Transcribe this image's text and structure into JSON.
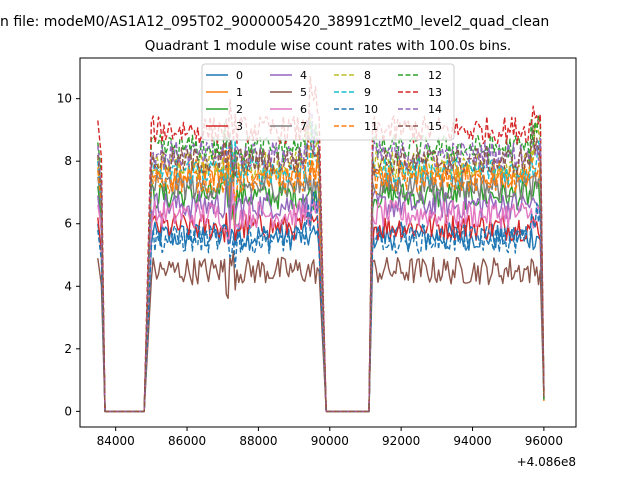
{
  "figure": {
    "suptitle": "n file: modeM0/AS1A12_095T02_9000005420_38991cztM0_level2_quad_clean",
    "offset_label": "+4.086e8"
  },
  "chart_data": {
    "type": "line",
    "title": "Quadrant 1 module wise count rates with 100.0s bins.",
    "xlabel": "",
    "ylabel": "",
    "xlim": [
      83000,
      96900
    ],
    "ylim": [
      -0.5,
      11.3
    ],
    "x_offset": 408600000,
    "xticks": [
      84000,
      86000,
      88000,
      90000,
      92000,
      94000,
      96000
    ],
    "xtick_labels": [
      "84000",
      "86000",
      "88000",
      "90000",
      "92000",
      "94000",
      "96000"
    ],
    "yticks": [
      0,
      2,
      4,
      6,
      8,
      10
    ],
    "ytick_labels": [
      "0",
      "2",
      "4",
      "6",
      "8",
      "10"
    ],
    "grid": false,
    "legend": {
      "position": "top-center",
      "columns": 4
    },
    "segments": [
      {
        "x_start": 83500,
        "x_end": 83700,
        "type": "drop",
        "drop_to": 0.0
      },
      {
        "x_start": 83800,
        "x_end": 84800,
        "type": "zero"
      },
      {
        "x_start": 84800,
        "x_end": 85000,
        "type": "rise"
      },
      {
        "x_start": 85000,
        "x_end": 89700,
        "type": "active"
      },
      {
        "x_start": 89700,
        "x_end": 89900,
        "type": "drop",
        "drop_to": 0.0
      },
      {
        "x_start": 90000,
        "x_end": 91100,
        "type": "zero"
      },
      {
        "x_start": 91100,
        "x_end": 91300,
        "type": "rise"
      },
      {
        "x_start": 91300,
        "x_end": 95900,
        "type": "active"
      },
      {
        "x_start": 95900,
        "x_end": 96000,
        "type": "drop",
        "drop_to": 0.3
      }
    ],
    "series": [
      {
        "name": "0",
        "color": "#1f77b4",
        "dashed": false,
        "level": 5.6,
        "start": 6.0
      },
      {
        "name": "1",
        "color": "#ff7f0e",
        "dashed": false,
        "level": 7.6,
        "start": 7.8
      },
      {
        "name": "2",
        "color": "#2ca02c",
        "dashed": false,
        "level": 6.9,
        "start": 7.2
      },
      {
        "name": "3",
        "color": "#d62728",
        "dashed": false,
        "level": 5.9,
        "start": 6.2
      },
      {
        "name": "4",
        "color": "#9467bd",
        "dashed": false,
        "level": 6.6,
        "start": 6.9
      },
      {
        "name": "5",
        "color": "#8c564b",
        "dashed": false,
        "level": 4.5,
        "start": 4.9
      },
      {
        "name": "6",
        "color": "#e377c2",
        "dashed": false,
        "level": 6.3,
        "start": 6.6
      },
      {
        "name": "7",
        "color": "#7f7f7f",
        "dashed": false,
        "level": 7.2,
        "start": 7.5
      },
      {
        "name": "8",
        "color": "#bcbd22",
        "dashed": true,
        "level": 7.9,
        "start": 8.1
      },
      {
        "name": "9",
        "color": "#17becf",
        "dashed": true,
        "level": 7.7,
        "start": 8.0
      },
      {
        "name": "10",
        "color": "#1f77b4",
        "dashed": true,
        "level": 5.5,
        "start": 5.8
      },
      {
        "name": "11",
        "color": "#ff7f0e",
        "dashed": true,
        "level": 7.4,
        "start": 7.7
      },
      {
        "name": "12",
        "color": "#2ca02c",
        "dashed": true,
        "level": 8.4,
        "start": 8.6
      },
      {
        "name": "13",
        "color": "#d62728",
        "dashed": true,
        "level": 9.0,
        "start": 9.3
      },
      {
        "name": "14",
        "color": "#9467bd",
        "dashed": true,
        "level": 8.2,
        "start": 8.5
      },
      {
        "name": "15",
        "color": "#8c564b",
        "dashed": true,
        "level": 8.0,
        "start": 8.2
      }
    ]
  }
}
